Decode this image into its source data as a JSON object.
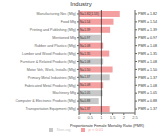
{
  "chart_data": {
    "type": "bar",
    "orientation": "horizontal",
    "title": "Industry",
    "xlabel": "Proportionate Female Mortality Ratio (PMR)",
    "categories": [
      "Manufacturing Nec (Mfg)",
      "Food Mfg",
      "Printing and Publishing (Mfg)",
      "Mentioned Mfg",
      "Rubber and Plastics (Mfg)",
      "Lumber and Wood Products (Mfg)",
      "Furniture & Related Products (Mfg)",
      "Motor Veh, Work, Installs (Mfg)",
      "Primary Metal Industries (Mfg)",
      "Fabricated Metal Products (Mfg)",
      "Machinery Mfg",
      "Computer & Electronic Products (Mfg)",
      "Transportation Equipment (Mfg)"
    ],
    "series": [
      {
        "name": "Non-sig",
        "color": "#c8c8c8",
        "values": [
          null,
          null,
          null,
          0.97,
          null,
          null,
          1.08,
          null,
          1.37,
          null,
          1.05,
          0.88,
          null
        ],
        "value_labels": [
          null,
          null,
          null,
          "N=0.97",
          null,
          null,
          "N=1.08",
          null,
          "N=1.37",
          null,
          "N=1.05",
          "N=0.88",
          null
        ]
      },
      {
        "name": "p < 0.01",
        "color": "#f4a0a0",
        "values": [
          1.82,
          1.54,
          1.39,
          null,
          1.08,
          1.35,
          null,
          1.5,
          null,
          1.08,
          null,
          null,
          1.37
        ],
        "value_labels": [
          "N=1.82(1.53)",
          "N=1.54",
          "N=1.39",
          null,
          "N=1.08",
          "N=1.35",
          null,
          "N=1.50",
          null,
          "N=1.08",
          null,
          null,
          "N=1.37"
        ]
      }
    ],
    "annotations": [
      "PMR = 1.82",
      "PMR = 1.54",
      "PMR = 1.39",
      "PMR = 0.97",
      "PMR = 1.08",
      "PMR = 1.35",
      "PMR = 1.08",
      "PMR = 1.50",
      "PMR = 1.37",
      "PMR = 1.08",
      "PMR = 1.05",
      "PMR = 0.88",
      "PMR = 1.37"
    ],
    "stacked": true,
    "legend": "bottom",
    "xlim": [
      0,
      2.5
    ],
    "xticks": [
      0,
      0.5,
      1,
      1.5,
      2,
      2.5
    ],
    "vline": 1
  }
}
